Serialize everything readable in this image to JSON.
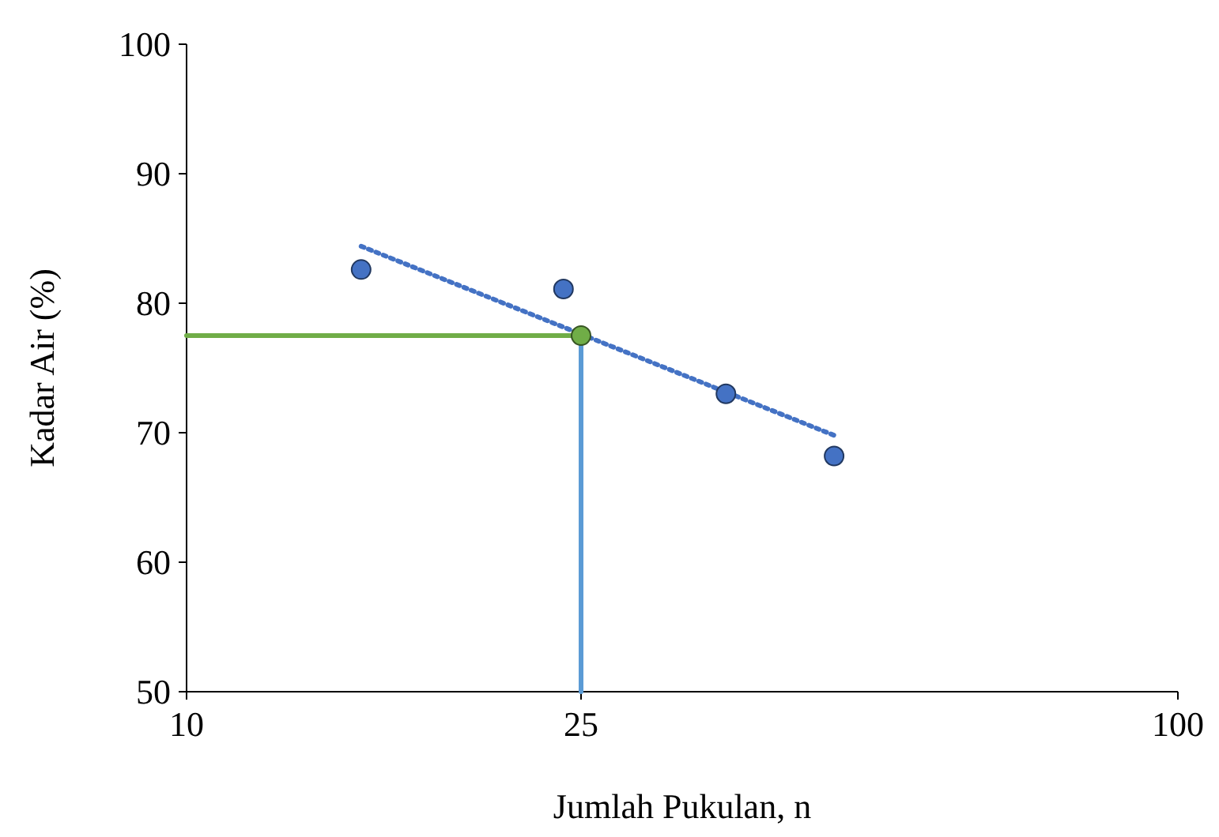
{
  "chart_data": {
    "type": "scatter",
    "xlabel": "Jumlah Pukulan, n",
    "ylabel": "Kadar Air (%)",
    "log": "x",
    "xlim": [
      10,
      100
    ],
    "xticks": [
      10,
      25,
      100
    ],
    "ylim": [
      50,
      100
    ],
    "yticks": [
      50,
      60,
      70,
      80,
      90,
      100
    ],
    "series": [
      {
        "type": "line",
        "color": "#70ad47",
        "x": [
          10,
          25
        ],
        "values": [
          77.5,
          77.5
        ],
        "marker": "none"
      },
      {
        "type": "line",
        "color": "#5b9bd5",
        "x": [
          25,
          25
        ],
        "values": [
          50,
          77.5
        ],
        "marker": "none"
      },
      {
        "type": "line",
        "color": "#4472c4",
        "x": [
          15,
          45
        ],
        "values": [
          84.4,
          69.8
        ],
        "line_style": "dotted",
        "marker": "none"
      },
      {
        "color": "#4472c4",
        "x": [
          15,
          24,
          35,
          45
        ],
        "values": [
          82.6,
          81.1,
          73.0,
          68.2
        ],
        "marker": "circle"
      },
      {
        "color": "#70ad47",
        "x": [
          25
        ],
        "values": [
          77.5
        ],
        "marker": "circle"
      }
    ]
  }
}
